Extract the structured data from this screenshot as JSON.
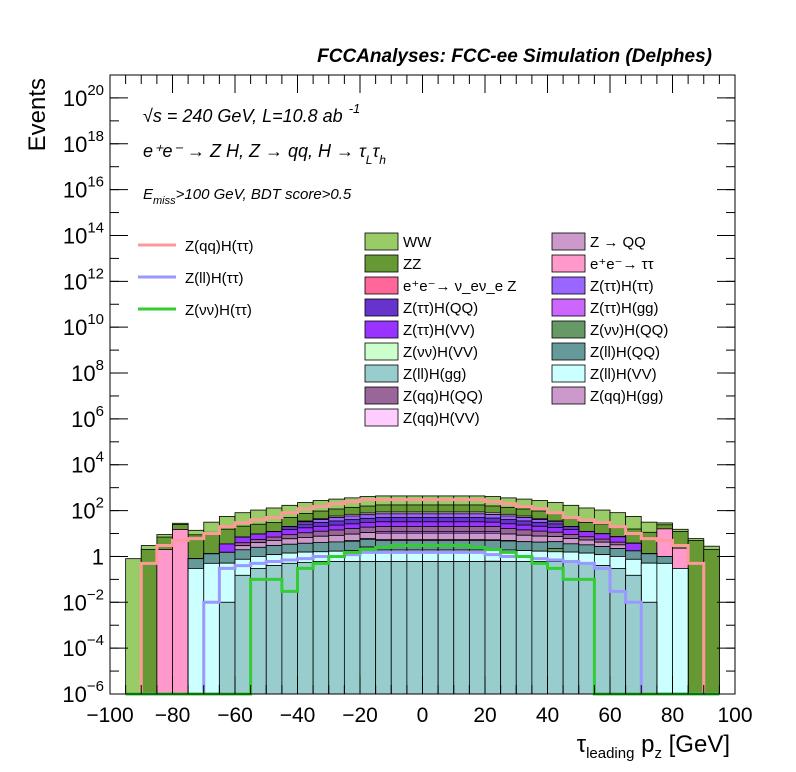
{
  "chart_data": {
    "type": "bar",
    "title": "FCCAnalyses: FCC-ee Simulation (Delphes)",
    "xlabel_main": "τ",
    "xlabel_sub": "leading",
    "xlabel_rest": " p",
    "xlabel_z": "z",
    "xlabel_unit": " [GeV]",
    "ylabel": "Events",
    "xlim": [
      -100,
      100
    ],
    "ylim": [
      1e-06,
      1e+21
    ],
    "yscale": "log",
    "x_ticks": [
      "−100",
      "−80",
      "−60",
      "−40",
      "−20",
      "0",
      "20",
      "40",
      "60",
      "80",
      "100"
    ],
    "y_ticks": [
      {
        "base": "10",
        "exp": "−6",
        "value": 1e-06
      },
      {
        "base": "10",
        "exp": "−4",
        "value": 0.0001
      },
      {
        "base": "10",
        "exp": "−2",
        "value": 0.01
      },
      {
        "base": "1",
        "exp": "",
        "value": 1
      },
      {
        "base": "10",
        "exp": "2",
        "value": 100.0
      },
      {
        "base": "10",
        "exp": "4",
        "value": 10000.0
      },
      {
        "base": "10",
        "exp": "6",
        "value": 1000000.0
      },
      {
        "base": "10",
        "exp": "8",
        "value": 100000000.0
      },
      {
        "base": "10",
        "exp": "10",
        "value": 10000000000.0
      },
      {
        "base": "10",
        "exp": "12",
        "value": 1000000000000.0
      },
      {
        "base": "10",
        "exp": "14",
        "value": 100000000000000.0
      },
      {
        "base": "10",
        "exp": "16",
        "value": 1e+16
      },
      {
        "base": "10",
        "exp": "18",
        "value": 1e+18
      },
      {
        "base": "10",
        "exp": "20",
        "value": 1e+20
      }
    ],
    "annotations": {
      "sqrt_s": "√s = 240 GeV, L=10.8 ab",
      "lumi_exp": "-1",
      "process": "e⁺e⁻ → Z H, Z → qq, H → τ",
      "process_l": "L",
      "process_tau": "τ",
      "process_h": "h",
      "cut_e": "E",
      "cut_miss": "miss",
      "cut_rest": ">100 GeV, BDT score>0.5"
    },
    "legend_placement": "top",
    "signal_legend": [
      {
        "name": "Z(qq)H(ττ)",
        "color": "#ff9999"
      },
      {
        "name": "Z(ll)H(ττ)",
        "color": "#9999ff"
      },
      {
        "name": "Z(νν)H(ττ)",
        "color": "#33cc33"
      }
    ],
    "background_legend": [
      {
        "name": "WW",
        "color": "#99cc66"
      },
      {
        "name": "Z → QQ",
        "color": "#cc99cc"
      },
      {
        "name": "ZZ",
        "color": "#669933"
      },
      {
        "name": "e⁺e⁻→ ττ",
        "color": "#ff99cc"
      },
      {
        "name": "e⁺e⁻→ ν_eν_e Z",
        "color": "#ff6699"
      },
      {
        "name": "Z(ττ)H(ττ)",
        "color": "#9966ff"
      },
      {
        "name": "Z(ττ)H(QQ)",
        "color": "#6633cc"
      },
      {
        "name": "Z(ττ)H(gg)",
        "color": "#cc66ff"
      },
      {
        "name": "Z(ττ)H(VV)",
        "color": "#9933ff"
      },
      {
        "name": "Z(νν)H(QQ)",
        "color": "#669966"
      },
      {
        "name": "Z(νν)H(VV)",
        "color": "#ccffcc"
      },
      {
        "name": "Z(ll)H(QQ)",
        "color": "#669999"
      },
      {
        "name": "Z(ll)H(gg)",
        "color": "#99cccc"
      },
      {
        "name": "Z(ll)H(VV)",
        "color": "#ccffff"
      },
      {
        "name": "Z(qq)H(QQ)",
        "color": "#996699"
      },
      {
        "name": "Z(qq)H(gg)",
        "color": "#cc99cc"
      },
      {
        "name": "Z(qq)H(VV)",
        "color": "#ffccff"
      }
    ],
    "bin_edges": [
      -95,
      -90,
      -85,
      -80,
      -75,
      -70,
      -65,
      -60,
      -55,
      -50,
      -45,
      -40,
      -35,
      -30,
      -25,
      -20,
      -15,
      -10,
      -5,
      0,
      5,
      10,
      15,
      20,
      25,
      30,
      35,
      40,
      45,
      50,
      55,
      60,
      65,
      70,
      75,
      80,
      85,
      90,
      95
    ],
    "stack_layers": [
      {
        "name": "Z(ll)H(gg)",
        "color": "#99cccc",
        "values": [
          0,
          0,
          0,
          0,
          0,
          0,
          0.01,
          0.15,
          0.3,
          0.4,
          0.5,
          0.55,
          0.6,
          0.6,
          0.6,
          0.6,
          0.6,
          0.6,
          0.6,
          0.6,
          0.6,
          0.6,
          0.6,
          0.6,
          0.6,
          0.6,
          0.6,
          0.6,
          0.55,
          0.5,
          0.4,
          0.3,
          0.15,
          0.01,
          0,
          0,
          0,
          0
        ]
      },
      {
        "name": "Z → QQ",
        "color": "#cc99cc",
        "values": [
          0,
          0,
          0,
          0,
          0,
          0,
          0,
          0,
          0,
          0,
          0,
          0,
          0,
          0,
          0,
          0,
          0,
          0,
          0,
          0,
          0,
          0,
          0,
          0.02,
          0,
          0,
          0,
          0,
          0,
          0,
          0,
          0,
          0,
          0,
          0,
          0,
          0,
          0
        ]
      },
      {
        "name": "Z(ll)H(VV)",
        "color": "#ccffff",
        "values": [
          0,
          0,
          0,
          0,
          0.3,
          0.5,
          0.5,
          0.6,
          0.7,
          0.8,
          0.9,
          1,
          1,
          1.1,
          1.2,
          1.3,
          1.3,
          1.3,
          1.3,
          1.3,
          1.3,
          1.3,
          1.3,
          1.3,
          1.3,
          1.2,
          1.1,
          1,
          1,
          0.9,
          0.8,
          0.7,
          0.6,
          0.5,
          0.5,
          0.3,
          0,
          0
        ]
      },
      {
        "name": "Z(νν)H(QQ)",
        "color": "#669966",
        "values": [
          0,
          0,
          0,
          0,
          0,
          0,
          0,
          0,
          0,
          0,
          0,
          0,
          0,
          0,
          0,
          0.7,
          0,
          0,
          0,
          0,
          0,
          0,
          0,
          0,
          0,
          0,
          0,
          0.6,
          0,
          0,
          0,
          0,
          0,
          0,
          0,
          0,
          0,
          0
        ]
      },
      {
        "name": "Z(ll)H(QQ)",
        "color": "#669999",
        "values": [
          0,
          0,
          0,
          0,
          0.5,
          0.8,
          1,
          1.2,
          1.5,
          1.8,
          2,
          2.2,
          2.5,
          2.6,
          2.8,
          3,
          3,
          3,
          3,
          3,
          3,
          3,
          3,
          3,
          2.8,
          2.6,
          2.5,
          2.2,
          2,
          1.8,
          1.5,
          1.2,
          1,
          0.8,
          0.5,
          0,
          0,
          0
        ]
      },
      {
        "name": "e⁺e⁻→ ν_eν_e Z",
        "color": "#ff6699",
        "values": [
          0,
          0,
          0,
          0,
          0,
          0,
          0,
          0,
          0,
          0,
          0,
          0,
          0,
          0,
          0.3,
          0.4,
          0.5,
          0.5,
          0.5,
          0.5,
          0.5,
          0.5,
          0.5,
          0.4,
          0.3,
          0,
          0,
          0,
          0,
          0,
          0,
          0,
          0,
          0,
          0,
          0,
          0,
          0
        ]
      },
      {
        "name": "Z(qq)H(gg)",
        "color": "#cc99cc",
        "values": [
          0,
          0,
          0,
          0,
          0,
          0,
          0,
          1,
          1.5,
          2,
          2.5,
          3,
          3.5,
          4,
          4.5,
          5,
          5,
          5,
          5,
          5,
          5,
          5,
          5,
          5,
          4.5,
          4,
          3.5,
          3,
          2.5,
          2,
          1.5,
          1,
          0,
          0,
          0,
          0,
          0,
          0
        ]
      },
      {
        "name": "Z(ττ)H(gg)",
        "color": "#cc66ff",
        "values": [
          0,
          0,
          0,
          0,
          0,
          0,
          0,
          0,
          0,
          0,
          0,
          0,
          0,
          0,
          0,
          0,
          2,
          2,
          2,
          2,
          2,
          2,
          2,
          2,
          0,
          0,
          0,
          0,
          0,
          0,
          0,
          0,
          0,
          0,
          0,
          0,
          0,
          0
        ]
      },
      {
        "name": "Z(qq)H(QQ)",
        "color": "#996699",
        "values": [
          0,
          0,
          0,
          0,
          0,
          0,
          0,
          1,
          1.5,
          2,
          3,
          4,
          5,
          6,
          7,
          8,
          8,
          8,
          8,
          8,
          8,
          8,
          8,
          8,
          7,
          6,
          5,
          4,
          3,
          2,
          1.5,
          1,
          0,
          0,
          0,
          0,
          0,
          0
        ]
      },
      {
        "name": "Z(ττ)H(VV)",
        "color": "#9933ff",
        "values": [
          0,
          0,
          0,
          0,
          0,
          0,
          2,
          3,
          4,
          5,
          6,
          7,
          8,
          9,
          10,
          11,
          12,
          12,
          12,
          12,
          12,
          12,
          12,
          11,
          10,
          9,
          8,
          7,
          6,
          5,
          4,
          3,
          2,
          0,
          0,
          0,
          0,
          0
        ]
      },
      {
        "name": "Z(ττ)H(QQ)",
        "color": "#6633cc",
        "values": [
          0,
          0,
          0,
          0,
          0,
          0,
          0,
          0,
          0,
          0,
          5,
          8,
          10,
          12,
          14,
          16,
          18,
          18,
          18,
          18,
          18,
          18,
          18,
          16,
          14,
          12,
          10,
          8,
          5,
          0,
          0,
          0,
          0,
          0,
          0,
          0,
          0,
          0
        ]
      },
      {
        "name": "Z(ττ)H(ττ)",
        "color": "#9966ff",
        "values": [
          0,
          0,
          0,
          0,
          0,
          0,
          0,
          0,
          0,
          0,
          0,
          6,
          10,
          14,
          18,
          20,
          22,
          22,
          22,
          22,
          22,
          22,
          22,
          20,
          18,
          14,
          10,
          6,
          0,
          0,
          0,
          0,
          0,
          0,
          0,
          0,
          0,
          0
        ]
      },
      {
        "name": "Z(νν)H(VV)",
        "color": "#ccffcc",
        "values": [
          0,
          0,
          0,
          0,
          0,
          0,
          0,
          0,
          0,
          0,
          0,
          0,
          0,
          0,
          0,
          0,
          0,
          0,
          0,
          0,
          0,
          0,
          0,
          0,
          0,
          0,
          0,
          0,
          0,
          0,
          0,
          0,
          0,
          0,
          0,
          0,
          0,
          0
        ]
      },
      {
        "name": "Z(qq)H(VV)",
        "color": "#ffccff",
        "values": [
          0,
          0,
          0,
          0,
          0,
          0,
          0,
          0,
          0,
          0,
          0,
          3,
          5,
          8,
          10,
          12,
          14,
          14,
          14,
          14,
          14,
          14,
          14,
          12,
          10,
          8,
          5,
          3,
          0,
          0,
          0,
          0,
          0,
          0,
          0,
          0,
          0,
          0
        ]
      },
      {
        "name": "e⁺e⁻→ ττ",
        "color": "#ff99cc",
        "values": [
          0,
          0,
          2,
          15,
          0,
          0,
          0,
          0,
          0,
          0,
          0,
          0,
          0,
          0,
          0,
          0,
          0,
          0,
          0,
          0,
          0,
          0,
          0,
          0,
          0,
          0,
          0,
          0,
          0,
          0,
          0,
          0,
          0,
          0,
          15,
          2,
          0,
          0
        ]
      },
      {
        "name": "ZZ",
        "color": "#669933",
        "values": [
          0,
          2,
          5,
          10,
          8,
          10,
          12,
          14,
          16,
          18,
          30,
          40,
          50,
          60,
          70,
          80,
          90,
          90,
          90,
          90,
          90,
          90,
          90,
          80,
          70,
          60,
          50,
          40,
          30,
          18,
          16,
          14,
          12,
          10,
          8,
          10,
          5,
          2
        ]
      },
      {
        "name": "WW",
        "color": "#99cc66",
        "values": [
          0.8,
          1,
          2,
          3,
          5,
          20,
          40,
          60,
          80,
          100,
          120,
          150,
          180,
          200,
          220,
          250,
          260,
          260,
          260,
          260,
          260,
          260,
          260,
          250,
          220,
          200,
          180,
          150,
          120,
          100,
          80,
          60,
          40,
          20,
          5,
          3,
          1,
          0.8
        ]
      }
    ],
    "signal_series": [
      {
        "name": "Z(qq)H(ττ)",
        "color": "#ff9999",
        "values": [
          0,
          0.5,
          3,
          5,
          6,
          10,
          20,
          30,
          40,
          50,
          80,
          120,
          150,
          200,
          250,
          300,
          300,
          300,
          300,
          300,
          300,
          300,
          300,
          250,
          200,
          150,
          120,
          80,
          50,
          40,
          30,
          20,
          10,
          6,
          5,
          3,
          0.5,
          0
        ]
      },
      {
        "name": "Z(ll)H(ττ)",
        "color": "#9999ff",
        "values": [
          0,
          0,
          0,
          0,
          0,
          0.01,
          0.3,
          0.4,
          0.5,
          0.6,
          0.7,
          0.8,
          1,
          1,
          1.2,
          1.5,
          1.5,
          1.5,
          1.5,
          1.5,
          1.5,
          1.5,
          1.5,
          1.2,
          1,
          1,
          0.8,
          0.7,
          0.6,
          0.5,
          0.3,
          0.03,
          0.01,
          0,
          0,
          0,
          0,
          0
        ]
      },
      {
        "name": "Z(νν)H(ττ)",
        "color": "#33cc33",
        "values": [
          0,
          0,
          0,
          0,
          0,
          0,
          0,
          0,
          0.1,
          0.1,
          0.03,
          0.3,
          0.5,
          1,
          1.5,
          2,
          2.5,
          3,
          3,
          3,
          3,
          3,
          2.5,
          2,
          1.5,
          1,
          0.5,
          0.3,
          0.1,
          0.1,
          0,
          0,
          0,
          0,
          0,
          0,
          0,
          0
        ]
      }
    ]
  }
}
